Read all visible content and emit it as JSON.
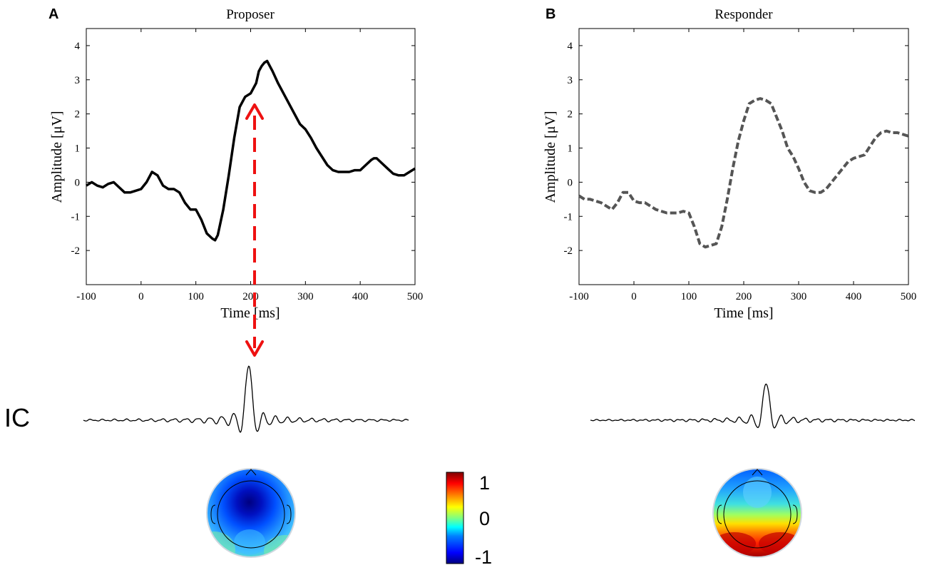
{
  "panel_labels": [
    "A",
    "B"
  ],
  "ic_label": "IC",
  "chart_data": [
    {
      "type": "line",
      "panel": "A",
      "title": "Proposer",
      "xlabel": "Time [ms]",
      "ylabel": "Amplitude [μV]",
      "xlim": [
        -100,
        500
      ],
      "ylim": [
        -3,
        4.5
      ],
      "xticks": [
        "-100",
        "0",
        "100",
        "200",
        "300",
        "400",
        "500"
      ],
      "yticks": [
        "-2",
        "-1",
        "0",
        "1",
        "2",
        "3",
        "4"
      ],
      "series": [
        {
          "name": "Proposer ERP",
          "style": "solid",
          "color": "#000000",
          "x": [
            -100,
            -90,
            -80,
            -70,
            -60,
            -50,
            -40,
            -30,
            -20,
            -10,
            0,
            10,
            20,
            30,
            40,
            50,
            60,
            70,
            80,
            90,
            100,
            110,
            120,
            130,
            135,
            140,
            150,
            160,
            170,
            180,
            190,
            200,
            210,
            215,
            220,
            225,
            230,
            240,
            250,
            260,
            270,
            280,
            290,
            300,
            310,
            320,
            330,
            340,
            350,
            360,
            370,
            380,
            390,
            400,
            410,
            420,
            425,
            430,
            440,
            450,
            460,
            470,
            480,
            490,
            500
          ],
          "values": [
            -0.1,
            0.0,
            -0.1,
            -0.15,
            -0.05,
            0.0,
            -0.15,
            -0.3,
            -0.3,
            -0.25,
            -0.2,
            0.0,
            0.3,
            0.2,
            -0.1,
            -0.2,
            -0.2,
            -0.3,
            -0.6,
            -0.8,
            -0.8,
            -1.1,
            -1.5,
            -1.65,
            -1.7,
            -1.55,
            -0.8,
            0.2,
            1.3,
            2.2,
            2.5,
            2.6,
            2.9,
            3.25,
            3.4,
            3.5,
            3.55,
            3.25,
            2.9,
            2.6,
            2.3,
            2.0,
            1.7,
            1.55,
            1.3,
            1.0,
            0.75,
            0.5,
            0.35,
            0.3,
            0.3,
            0.3,
            0.35,
            0.35,
            0.5,
            0.65,
            0.7,
            0.7,
            0.55,
            0.4,
            0.25,
            0.2,
            0.2,
            0.3,
            0.4
          ]
        }
      ],
      "annotation": "dashed red double-headed arrow at 205 ms"
    },
    {
      "type": "line",
      "panel": "B",
      "title": "Responder",
      "xlabel": "Time [ms]",
      "ylabel": "Amplitude [μV]",
      "xlim": [
        -100,
        500
      ],
      "ylim": [
        -3,
        4.5
      ],
      "xticks": [
        "-100",
        "0",
        "100",
        "200",
        "300",
        "400",
        "500"
      ],
      "yticks": [
        "-2",
        "-1",
        "0",
        "1",
        "2",
        "3",
        "4"
      ],
      "series": [
        {
          "name": "Responder ERP",
          "style": "dashed",
          "color": "#555555",
          "x": [
            -100,
            -90,
            -80,
            -70,
            -60,
            -50,
            -40,
            -30,
            -20,
            -10,
            0,
            10,
            20,
            30,
            40,
            50,
            60,
            70,
            80,
            90,
            100,
            110,
            120,
            130,
            140,
            150,
            160,
            170,
            180,
            190,
            200,
            210,
            220,
            230,
            240,
            250,
            260,
            270,
            280,
            290,
            300,
            310,
            320,
            330,
            340,
            350,
            360,
            370,
            380,
            390,
            400,
            410,
            420,
            430,
            440,
            450,
            460,
            470,
            480,
            490,
            500
          ],
          "values": [
            -0.4,
            -0.5,
            -0.5,
            -0.55,
            -0.6,
            -0.7,
            -0.8,
            -0.6,
            -0.3,
            -0.3,
            -0.55,
            -0.6,
            -0.6,
            -0.7,
            -0.8,
            -0.85,
            -0.9,
            -0.9,
            -0.9,
            -0.85,
            -0.9,
            -1.3,
            -1.8,
            -1.9,
            -1.85,
            -1.8,
            -1.3,
            -0.5,
            0.4,
            1.2,
            1.8,
            2.3,
            2.4,
            2.45,
            2.4,
            2.3,
            1.9,
            1.5,
            1.0,
            0.75,
            0.4,
            0.0,
            -0.25,
            -0.3,
            -0.3,
            -0.2,
            0.0,
            0.2,
            0.4,
            0.6,
            0.7,
            0.75,
            0.8,
            1.05,
            1.3,
            1.45,
            1.5,
            1.45,
            1.45,
            1.4,
            1.35
          ]
        }
      ]
    },
    {
      "type": "line",
      "panel": "A",
      "title": "IC",
      "description": "independent component time course (Proposer)",
      "series": [
        {
          "name": "IC waveform A",
          "color": "#000000",
          "x": [
            -100,
            500
          ],
          "peak_time": 205,
          "peak_amplitude": 1.0
        }
      ]
    },
    {
      "type": "line",
      "panel": "B",
      "title": "IC",
      "description": "independent component time course (Responder)",
      "series": [
        {
          "name": "IC waveform B",
          "color": "#000000",
          "x": [
            -100,
            500
          ],
          "peak_time": 225,
          "peak_amplitude": 0.6
        }
      ]
    },
    {
      "type": "heatmap",
      "title": "colorbar",
      "range": [
        -1,
        1
      ],
      "ticks": [
        "1",
        "0",
        "-1"
      ],
      "colormap": [
        "#00007f",
        "#0000ff",
        "#0080ff",
        "#00ffff",
        "#80ff80",
        "#ffff00",
        "#ff8000",
        "#ff0000",
        "#7f0000"
      ]
    }
  ],
  "colors": {
    "arrow": "#ee1111",
    "axis": "#000000"
  }
}
